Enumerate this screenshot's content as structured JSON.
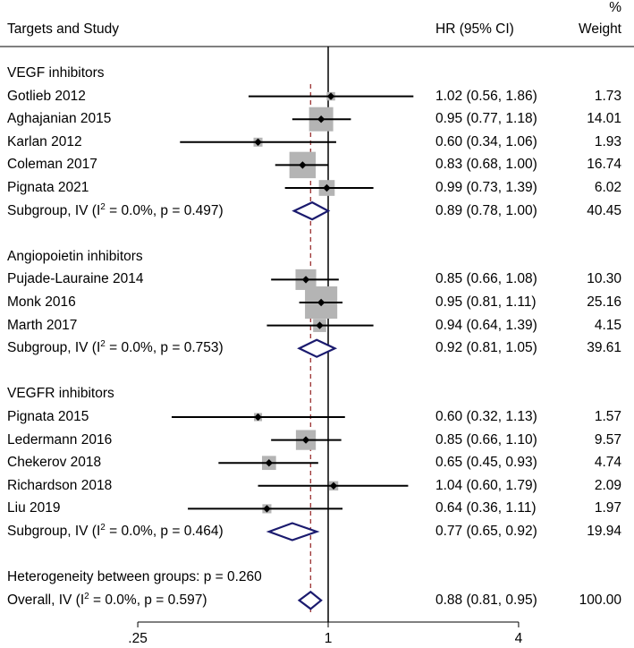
{
  "chart_data": {
    "type": "forest",
    "header": {
      "study": "Targets and Study",
      "hr": "HR (95% CI)",
      "weight_top": "%",
      "weight_bottom": "Weight"
    },
    "x_scale": "log",
    "xlim": [
      0.18,
      4.5
    ],
    "ticks": [
      {
        "value": 0.25,
        "label": ".25"
      },
      {
        "value": 1,
        "label": "1"
      },
      {
        "value": 4,
        "label": "4"
      }
    ],
    "null_line": 1,
    "overall_line": 0.88,
    "rows": [
      {
        "kind": "group",
        "label": "VEGF inhibitors"
      },
      {
        "kind": "study",
        "label": "Gotlieb 2012",
        "hr": 1.02,
        "lo": 0.56,
        "hi": 1.86,
        "ci_text": "1.02 (0.56, 1.86)",
        "weight": 1.73,
        "weight_text": "1.73"
      },
      {
        "kind": "study",
        "label": "Aghajanian 2015",
        "hr": 0.95,
        "lo": 0.77,
        "hi": 1.18,
        "ci_text": "0.95 (0.77, 1.18)",
        "weight": 14.01,
        "weight_text": "14.01"
      },
      {
        "kind": "study",
        "label": "Karlan 2012",
        "hr": 0.6,
        "lo": 0.34,
        "hi": 1.06,
        "ci_text": "0.60 (0.34, 1.06)",
        "weight": 1.93,
        "weight_text": "1.93"
      },
      {
        "kind": "study",
        "label": "Coleman 2017",
        "hr": 0.83,
        "lo": 0.68,
        "hi": 1.0,
        "ci_text": "0.83 (0.68, 1.00)",
        "weight": 16.74,
        "weight_text": "16.74"
      },
      {
        "kind": "study",
        "label": "Pignata 2021",
        "hr": 0.99,
        "lo": 0.73,
        "hi": 1.39,
        "ci_text": "0.99 (0.73, 1.39)",
        "weight": 6.02,
        "weight_text": "6.02"
      },
      {
        "kind": "subgroup",
        "prefix": "Subgroup, IV (I",
        "sup": "2",
        "suffix": " = 0.0%, p = 0.497)",
        "hr": 0.89,
        "lo": 0.78,
        "hi": 1.0,
        "ci_text": "0.89 (0.78, 1.00)",
        "weight_text": "40.45"
      },
      {
        "kind": "blank"
      },
      {
        "kind": "group",
        "label": "Angiopoietin inhibitors"
      },
      {
        "kind": "study",
        "label": "Pujade-Lauraine 2014",
        "hr": 0.85,
        "lo": 0.66,
        "hi": 1.08,
        "ci_text": "0.85 (0.66, 1.08)",
        "weight": 10.3,
        "weight_text": "10.30"
      },
      {
        "kind": "study",
        "label": "Monk 2016",
        "hr": 0.95,
        "lo": 0.81,
        "hi": 1.11,
        "ci_text": "0.95 (0.81, 1.11)",
        "weight": 25.16,
        "weight_text": "25.16"
      },
      {
        "kind": "study",
        "label": "Marth 2017",
        "hr": 0.94,
        "lo": 0.64,
        "hi": 1.39,
        "ci_text": "0.94 (0.64, 1.39)",
        "weight": 4.15,
        "weight_text": "4.15"
      },
      {
        "kind": "subgroup",
        "prefix": "Subgroup, IV (I",
        "sup": "2",
        "suffix": " = 0.0%, p = 0.753)",
        "hr": 0.92,
        "lo": 0.81,
        "hi": 1.05,
        "ci_text": "0.92 (0.81, 1.05)",
        "weight_text": "39.61"
      },
      {
        "kind": "blank"
      },
      {
        "kind": "group",
        "label": "VEGFR inhibitors"
      },
      {
        "kind": "study",
        "label": "Pignata 2015",
        "hr": 0.6,
        "lo": 0.32,
        "hi": 1.13,
        "ci_text": "0.60 (0.32, 1.13)",
        "weight": 1.57,
        "weight_text": "1.57"
      },
      {
        "kind": "study",
        "label": "Ledermann 2016",
        "hr": 0.85,
        "lo": 0.66,
        "hi": 1.1,
        "ci_text": "0.85 (0.66, 1.10)",
        "weight": 9.57,
        "weight_text": "9.57"
      },
      {
        "kind": "study",
        "label": "Chekerov 2018",
        "hr": 0.65,
        "lo": 0.45,
        "hi": 0.93,
        "ci_text": "0.65 (0.45, 0.93)",
        "weight": 4.74,
        "weight_text": "4.74"
      },
      {
        "kind": "study",
        "label": "Richardson 2018",
        "hr": 1.04,
        "lo": 0.6,
        "hi": 1.79,
        "ci_text": "1.04 (0.60, 1.79)",
        "weight": 2.09,
        "weight_text": "2.09"
      },
      {
        "kind": "study",
        "label": "Liu 2019",
        "hr": 0.64,
        "lo": 0.36,
        "hi": 1.11,
        "ci_text": "0.64 (0.36, 1.11)",
        "weight": 1.97,
        "weight_text": "1.97"
      },
      {
        "kind": "subgroup",
        "prefix": "Subgroup, IV (I",
        "sup": "2",
        "suffix": " = 0.0%, p = 0.464)",
        "hr": 0.77,
        "lo": 0.65,
        "hi": 0.92,
        "ci_text": "0.77 (0.65, 0.92)",
        "weight_text": "19.94"
      },
      {
        "kind": "blank"
      },
      {
        "kind": "text",
        "label": "Heterogeneity between groups: p = 0.260"
      },
      {
        "kind": "overall",
        "prefix": "Overall, IV (I",
        "sup": "2",
        "suffix": " = 0.0%, p = 0.597)",
        "hr": 0.88,
        "lo": 0.81,
        "hi": 0.95,
        "ci_text": "0.88 (0.81, 0.95)",
        "weight_text": "100.00"
      }
    ],
    "colors": {
      "text": "#000000",
      "box": "#b4b4b4",
      "diamond": "#1a1a6e",
      "overall_line": "#a03c3c"
    }
  }
}
